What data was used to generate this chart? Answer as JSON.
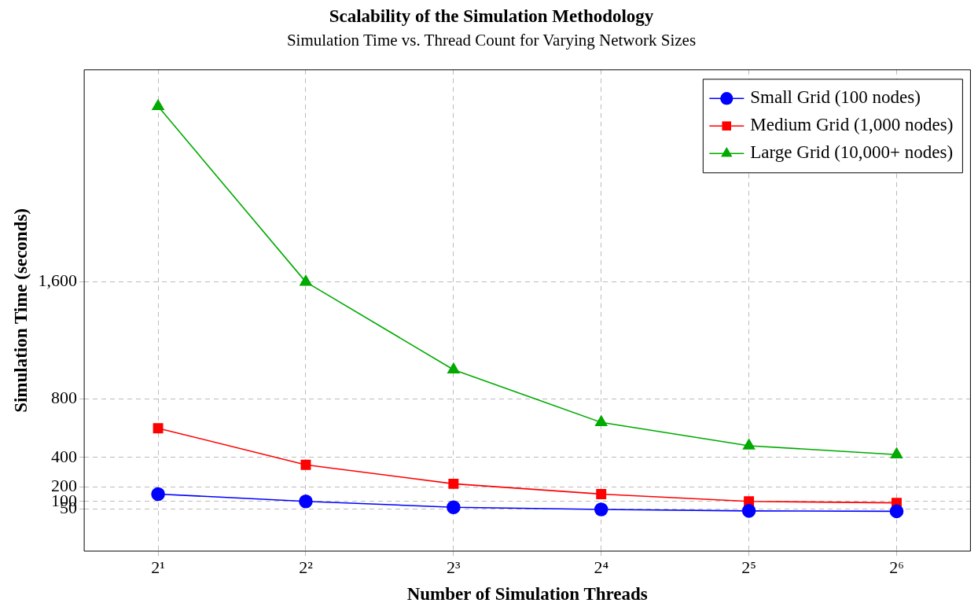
{
  "chart_data": {
    "type": "line",
    "title": "Scalability of the Simulation Methodology",
    "subtitle": "Simulation Time vs. Thread Count for Varying Network Sizes",
    "xlabel": "Number of Simulation Threads",
    "ylabel": "Simulation Time (seconds)",
    "x": [
      2,
      4,
      8,
      16,
      32,
      64
    ],
    "series": [
      {
        "name": "Small Grid (100 nodes)",
        "color": "#0000ff",
        "marker": "circle",
        "values": [
          150,
          100,
          60,
          45,
          35,
          32
        ]
      },
      {
        "name": "Medium Grid (1,000 nodes)",
        "color": "#ff0000",
        "marker": "square",
        "values": [
          600,
          350,
          220,
          150,
          100,
          90
        ]
      },
      {
        "name": "Large Grid (10,000+ nodes)",
        "color": "#00aa00",
        "marker": "triangle",
        "values": [
          2800,
          1600,
          1000,
          640,
          480,
          420
        ]
      }
    ],
    "log": "x",
    "xlim": [
      1.414,
      90.5
    ],
    "xticks": [
      {
        "value": 2,
        "label": "2¹"
      },
      {
        "value": 4,
        "label": "2²"
      },
      {
        "value": 8,
        "label": "2³"
      },
      {
        "value": 16,
        "label": "2⁴"
      },
      {
        "value": 32,
        "label": "2⁵"
      },
      {
        "value": 64,
        "label": "2⁶"
      }
    ],
    "ylim": [
      -240,
      3050
    ],
    "yticks": [
      50,
      100,
      200,
      400,
      800,
      {
        "value": 1600,
        "label": "1,600"
      }
    ],
    "grid": true,
    "legend": "top right",
    "line_style": "solid"
  }
}
